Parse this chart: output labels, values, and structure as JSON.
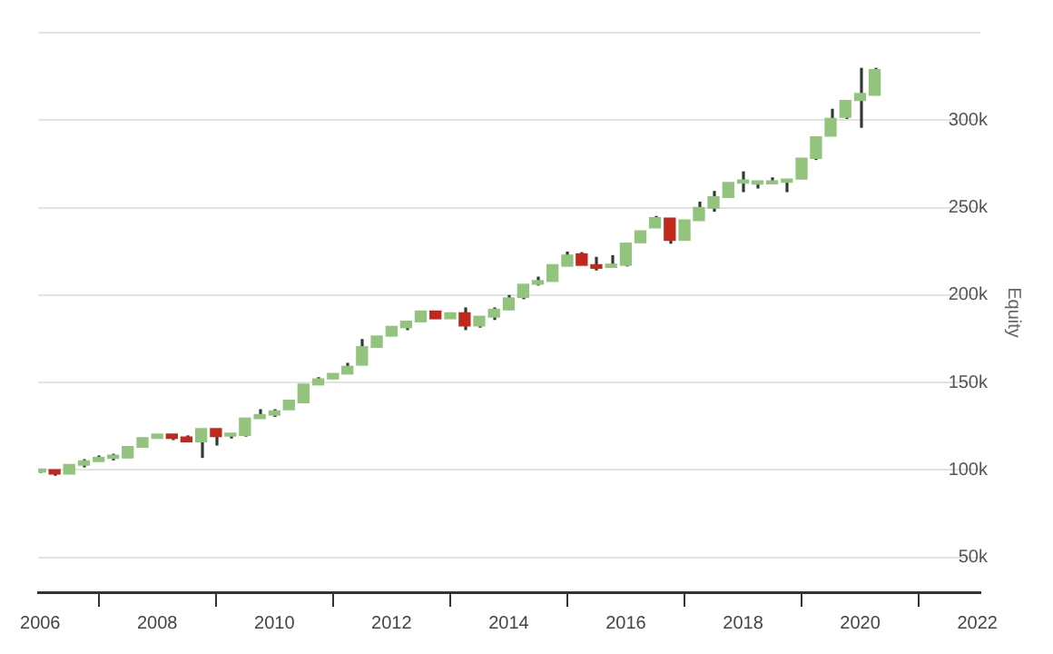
{
  "chart_data": {
    "type": "candlestick",
    "ylabel": "Equity",
    "x": [
      "2006-01",
      "2006-04",
      "2006-07",
      "2006-10",
      "2007-01",
      "2007-04",
      "2007-07",
      "2007-10",
      "2008-01",
      "2008-04",
      "2008-07",
      "2008-10",
      "2009-01",
      "2009-04",
      "2009-07",
      "2009-10",
      "2010-01",
      "2010-04",
      "2010-07",
      "2010-10",
      "2011-01",
      "2011-04",
      "2011-07",
      "2011-10",
      "2012-01",
      "2012-04",
      "2012-07",
      "2012-10",
      "2013-01",
      "2013-04",
      "2013-07",
      "2013-10",
      "2014-01",
      "2014-04",
      "2014-07",
      "2014-10",
      "2015-01",
      "2015-04",
      "2015-07",
      "2015-10",
      "2016-01",
      "2016-04",
      "2016-07",
      "2016-10",
      "2017-01",
      "2017-04",
      "2017-07",
      "2017-10",
      "2018-01",
      "2018-04",
      "2018-07",
      "2018-10",
      "2019-01",
      "2019-04",
      "2019-07",
      "2019-10",
      "2020-01",
      "2020-04"
    ],
    "ohlc": [
      [
        98800,
        100500,
        98300,
        100500
      ],
      [
        100000,
        100000,
        96600,
        97600
      ],
      [
        97600,
        103000,
        97600,
        103000
      ],
      [
        102700,
        106100,
        101400,
        105100
      ],
      [
        104800,
        108200,
        104800,
        107100
      ],
      [
        106600,
        109200,
        105400,
        108400
      ],
      [
        106800,
        113300,
        106800,
        113300
      ],
      [
        112900,
        118400,
        112900,
        118400
      ],
      [
        118000,
        120400,
        118000,
        120400
      ],
      [
        120400,
        120400,
        117000,
        118000
      ],
      [
        118700,
        119700,
        116000,
        116000
      ],
      [
        116000,
        123500,
        106800,
        123500
      ],
      [
        123500,
        123500,
        113900,
        119000
      ],
      [
        119300,
        121000,
        117900,
        121000
      ],
      [
        119700,
        129600,
        119000,
        129600
      ],
      [
        129300,
        134700,
        129300,
        131600
      ],
      [
        131300,
        134700,
        130300,
        133700
      ],
      [
        134400,
        139800,
        134400,
        139800
      ],
      [
        138400,
        149000,
        138400,
        149000
      ],
      [
        148600,
        153000,
        148600,
        152000
      ],
      [
        152000,
        155100,
        152000,
        155100
      ],
      [
        154800,
        161200,
        154800,
        159200
      ],
      [
        159900,
        174800,
        159900,
        170400
      ],
      [
        170100,
        176500,
        170100,
        176500
      ],
      [
        176500,
        182000,
        176500,
        182000
      ],
      [
        181300,
        185000,
        179900,
        185000
      ],
      [
        184700,
        190800,
        184700,
        190800
      ],
      [
        190800,
        190800,
        186400,
        186400
      ],
      [
        186400,
        189800,
        186400,
        189800
      ],
      [
        189800,
        192900,
        179900,
        182300
      ],
      [
        182300,
        187800,
        181300,
        187800
      ],
      [
        187400,
        192900,
        185700,
        191800
      ],
      [
        191500,
        200000,
        191500,
        198300
      ],
      [
        198600,
        206100,
        197600,
        206100
      ],
      [
        206200,
        210500,
        205400,
        208200
      ],
      [
        207800,
        217300,
        207800,
        217300
      ],
      [
        216500,
        224800,
        216500,
        222800
      ],
      [
        223500,
        224500,
        217000,
        217000
      ],
      [
        217300,
        221800,
        214000,
        215300
      ],
      [
        215800,
        222800,
        215800,
        217600
      ],
      [
        217000,
        229600,
        216300,
        229600
      ],
      [
        229900,
        236700,
        229900,
        236700
      ],
      [
        238400,
        245200,
        238400,
        244200
      ],
      [
        243900,
        243900,
        229300,
        231300
      ],
      [
        231300,
        242900,
        231300,
        242900
      ],
      [
        242500,
        253400,
        242500,
        250000
      ],
      [
        249700,
        259500,
        247600,
        256100
      ],
      [
        255800,
        264300,
        255800,
        264300
      ],
      [
        264000,
        270700,
        258800,
        265800
      ],
      [
        263500,
        265300,
        260900,
        265300
      ],
      [
        263600,
        267300,
        263600,
        265300
      ],
      [
        264500,
        266300,
        258800,
        266300
      ],
      [
        266300,
        278200,
        266300,
        278200
      ],
      [
        278200,
        290500,
        277200,
        290500
      ],
      [
        290800,
        306500,
        290800,
        301000
      ],
      [
        301700,
        311200,
        300700,
        311200
      ],
      [
        311200,
        329900,
        295600,
        315300
      ],
      [
        314300,
        329900,
        314300,
        328900
      ]
    ],
    "colors": [
      "#93c47d",
      "#c0281b",
      "#93c47d",
      "#93c47d",
      "#93c47d",
      "#93c47d",
      "#93c47d",
      "#93c47d",
      "#93c47d",
      "#c0281b",
      "#c0281b",
      "#93c47d",
      "#c0281b",
      "#93c47d",
      "#93c47d",
      "#93c47d",
      "#93c47d",
      "#93c47d",
      "#93c47d",
      "#93c47d",
      "#93c47d",
      "#93c47d",
      "#93c47d",
      "#93c47d",
      "#93c47d",
      "#93c47d",
      "#93c47d",
      "#c0281b",
      "#93c47d",
      "#c0281b",
      "#93c47d",
      "#93c47d",
      "#93c47d",
      "#93c47d",
      "#93c47d",
      "#93c47d",
      "#93c47d",
      "#c0281b",
      "#c0281b",
      "#93c47d",
      "#93c47d",
      "#93c47d",
      "#93c47d",
      "#c0281b",
      "#93c47d",
      "#93c47d",
      "#93c47d",
      "#93c47d",
      "#93c47d",
      "#93c47d",
      "#93c47d",
      "#93c47d",
      "#93c47d",
      "#93c47d",
      "#93c47d",
      "#93c47d",
      "#93c47d",
      "#93c47d"
    ],
    "xlim": [
      "2005-12-20",
      "2022-01-20"
    ],
    "xticks": [
      "2006",
      "2008",
      "2010",
      "2012",
      "2014",
      "2016",
      "2018",
      "2020",
      "2022"
    ],
    "ylim": [
      30000,
      350000
    ],
    "yticks": [
      {
        "value": 50000,
        "label": "50k"
      },
      {
        "value": 100000,
        "label": "100k"
      },
      {
        "value": 150000,
        "label": "150k"
      },
      {
        "value": 200000,
        "label": "200k"
      },
      {
        "value": 250000,
        "label": "250k"
      },
      {
        "value": 300000,
        "label": "300k"
      },
      {
        "value": 350000,
        "label": null
      }
    ],
    "grid": "y"
  }
}
